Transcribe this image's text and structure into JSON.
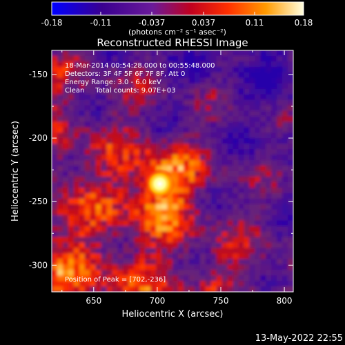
{
  "chart_data": {
    "type": "heatmap",
    "title": "Reconstructed RHESSI Image",
    "xlabel": "Heliocentric X (arcsec)",
    "ylabel": "Heliocentric Y (arcsec)",
    "xlim": [
      617,
      807
    ],
    "ylim": [
      -321,
      -131
    ],
    "x_ticks": [
      "650",
      "700",
      "750",
      "800"
    ],
    "x_tick_values": [
      650,
      700,
      750,
      800
    ],
    "y_ticks": [
      "-150",
      "-200",
      "-250",
      "-300"
    ],
    "y_tick_values": [
      -150,
      -200,
      -250,
      -300
    ],
    "colorbar": {
      "ticks": [
        "-0.18",
        "-0.11",
        "-0.037",
        "0.037",
        "0.11",
        "0.18"
      ],
      "tick_values": [
        -0.18,
        -0.11,
        -0.037,
        0.037,
        0.11,
        0.18
      ],
      "range": [
        -0.18,
        0.18
      ],
      "units_label": "(photons cm⁻² s⁻¹ asec⁻²)",
      "colors": [
        "#0000ff",
        "#4b0082",
        "#7a1fa0",
        "#c00020",
        "#ff3000",
        "#ff9000",
        "#ffff80",
        "#ffffff"
      ]
    },
    "info_lines": [
      "18-Mar-2014 00:54:28.000 to 00:55:48.000",
      "Detectors: 3F 4F 5F 6F 7F 8F, Att 0",
      "Energy Range: 3.0 - 6.0 keV",
      "Clean     Total counts: 9.07E+03"
    ],
    "peak": {
      "x": 702,
      "y": -236,
      "label": "Position of Peak = [702,-236]"
    },
    "timestamp": "13-May-2022 22:55"
  }
}
